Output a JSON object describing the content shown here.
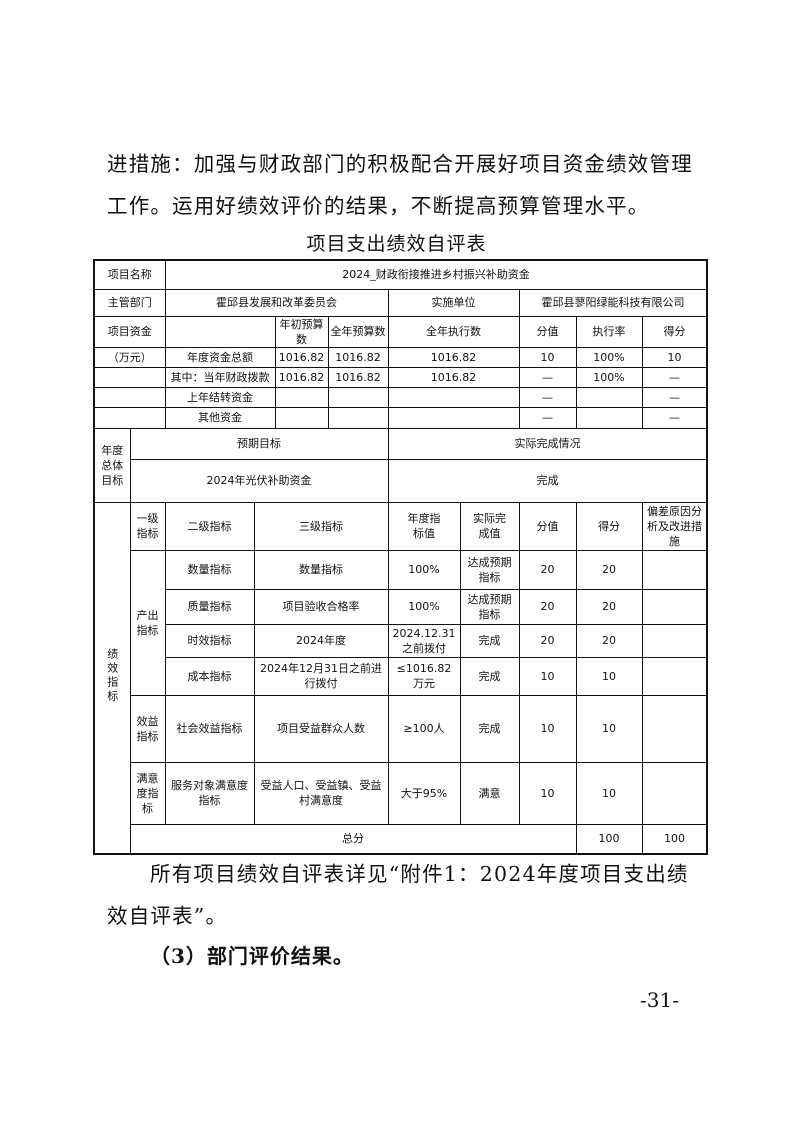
{
  "intro_paragraph": "进措施：加强与财政部门的积极配合开展好项目资金绩效管理工作。运用好绩效评价的结果，不断提高预算管理水平。",
  "table_title": "项目支出绩效自评表",
  "table": {
    "project_name_label": "项目名称",
    "project_name": "2024_财政衔接推进乡村振兴补助资金",
    "dept_label": "主管部门",
    "dept": "霍邱县发展和改革委员会",
    "impl_label": "实施单位",
    "impl": "霍邱县蓼阳绿能科技有限公司",
    "funds_label": "项目资金",
    "funds_unit": "（万元）",
    "funds_headers": [
      "年初预算数",
      "全年预算数",
      "全年执行数",
      "分值",
      "执行率",
      "得分"
    ],
    "funds_rows": [
      {
        "label": "年度资金总额",
        "initial": "1016.82",
        "annual": "1016.82",
        "executed": "1016.82",
        "weight": "10",
        "rate": "100%",
        "score": "10"
      },
      {
        "label": "其中：当年财政拨款",
        "initial": "1016.82",
        "annual": "1016.82",
        "executed": "1016.82",
        "weight": "—",
        "rate": "100%",
        "score": "—"
      },
      {
        "label": "上年结转资金",
        "initial": "",
        "annual": "",
        "executed": "",
        "weight": "—",
        "rate": "",
        "score": "—"
      },
      {
        "label": "其他资金",
        "initial": "",
        "annual": "",
        "executed": "",
        "weight": "—",
        "rate": "",
        "score": "—"
      }
    ],
    "goal_label": "年度总体目标",
    "expected_label": "预期目标",
    "actual_label": "实际完成情况",
    "expected": "2024年光伏补助资金",
    "actual": "完成",
    "perf_label": "绩效指标",
    "perf_headers": [
      "一级指标",
      "二级指标",
      "三级指标",
      "年度指标值",
      "实际完成值",
      "分值",
      "得分",
      "偏差原因分析及改进措施"
    ],
    "perf_groups": [
      {
        "level1": "产出指标",
        "rows": [
          {
            "level2": "数量指标",
            "level3": "数量指标",
            "target": "100%",
            "actual": "达成预期指标",
            "weight": "20",
            "score": "20",
            "note": ""
          },
          {
            "level2": "质量指标",
            "level3": "项目验收合格率",
            "target": "100%",
            "actual": "达成预期指标",
            "weight": "20",
            "score": "20",
            "note": ""
          },
          {
            "level2": "时效指标",
            "level3": "2024年度",
            "target": "2024.12.31之前拨付",
            "actual": "完成",
            "weight": "20",
            "score": "20",
            "note": ""
          },
          {
            "level2": "成本指标",
            "level3": "2024年12月31日之前进行拨付",
            "target": "≤1016.82万元",
            "actual": "完成",
            "weight": "10",
            "score": "10",
            "note": ""
          }
        ]
      },
      {
        "level1": "效益指标",
        "rows": [
          {
            "level2": "社会效益指标",
            "level3": "项目受益群众人数",
            "target": "≥100人",
            "actual": "完成",
            "weight": "10",
            "score": "10",
            "note": ""
          }
        ]
      },
      {
        "level1": "满意度指标",
        "rows": [
          {
            "level2": "服务对象满意度指标",
            "level3": "受益人口、受益镇、受益村满意度",
            "target": "大于95%",
            "actual": "满意",
            "weight": "10",
            "score": "10",
            "note": ""
          }
        ]
      }
    ],
    "total_label": "总分",
    "total_weight": "100",
    "total_score": "100"
  },
  "closing_paragraph": "所有项目绩效自评表详见“附件1：2024年度项目支出绩效自评表”。",
  "section_heading": "（3）部门评价结果。",
  "page_number": "-31-"
}
